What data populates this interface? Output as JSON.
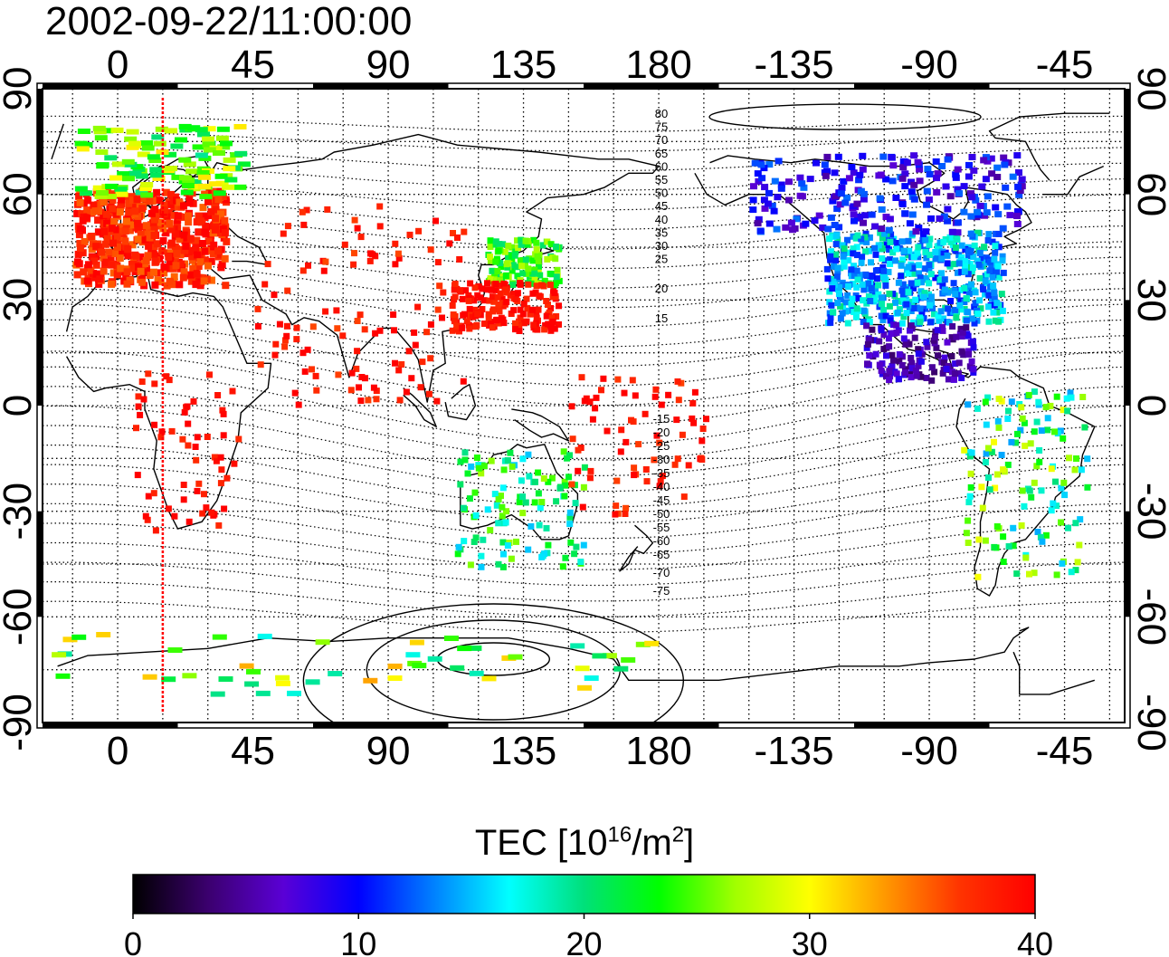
{
  "title": "2002-09-22/11:00:00",
  "map": {
    "top_lon_labels": [
      "0",
      "45",
      "90",
      "135",
      "180",
      "-135",
      "-90",
      "-45"
    ],
    "bottom_lon_labels": [
      "0",
      "45",
      "90",
      "135",
      "180",
      "-135",
      "-90",
      "-45"
    ],
    "left_lat_labels": [
      "90",
      "60",
      "30",
      "0",
      "-30",
      "-60",
      "-90"
    ],
    "right_lat_labels": [
      "90",
      "60",
      "30",
      "0",
      "-30",
      "-60",
      "-90"
    ],
    "contour_labels_north": [
      "80",
      "75",
      "70",
      "65",
      "60",
      "55",
      "50",
      "45",
      "40",
      "35",
      "30",
      "25",
      "20",
      "15"
    ],
    "contour_labels_south": [
      "-15",
      "-20",
      "-25",
      "-30",
      "-35",
      "-40",
      "-45",
      "-50",
      "-55",
      "-60",
      "-65",
      "-70",
      "-75"
    ],
    "terminator_longitude": 15,
    "terminator_color": "#ff0000",
    "regions": [
      {
        "name": "europe",
        "tec": 38
      },
      {
        "name": "north-europe",
        "tec": 25
      },
      {
        "name": "japan",
        "tec": 24
      },
      {
        "name": "east-china",
        "tec": 39
      },
      {
        "name": "north-america",
        "tec": 15
      },
      {
        "name": "canada",
        "tec": 9
      },
      {
        "name": "central-america",
        "tec": 6
      },
      {
        "name": "south-america",
        "tec": 22
      },
      {
        "name": "australia",
        "tec": 21
      },
      {
        "name": "antarctica",
        "tec": 25
      },
      {
        "name": "africa",
        "tec": 39
      }
    ]
  },
  "colorbar": {
    "label_main": "TEC  [10",
    "label_sup1": "16",
    "label_mid": "/m",
    "label_sup2": "2",
    "label_end": "]",
    "ticks": [
      "0",
      "10",
      "20",
      "30",
      "40"
    ],
    "min": 0,
    "max": 40,
    "colors": [
      "#000000",
      "#3b006e",
      "#5a00d6",
      "#0000ff",
      "#0080ff",
      "#00ffff",
      "#00e07a",
      "#00ff00",
      "#a0ff00",
      "#ffff00",
      "#ff9900",
      "#ff3300",
      "#ff0000"
    ]
  }
}
